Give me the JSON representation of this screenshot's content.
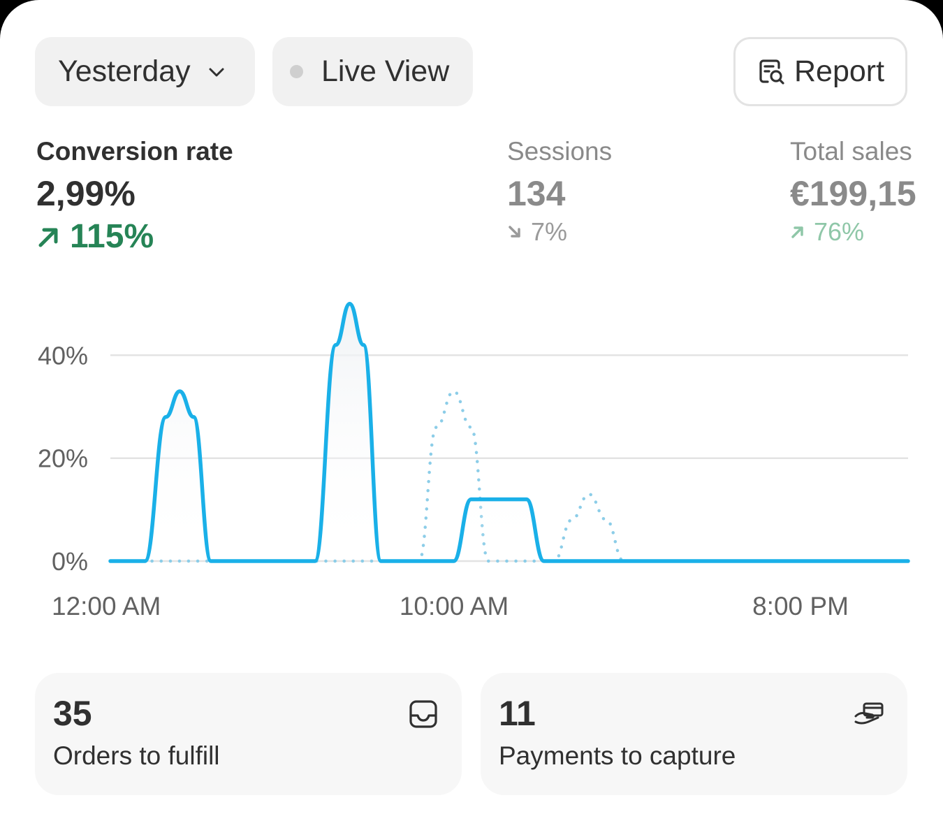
{
  "header": {
    "period_label": "Yesterday",
    "live_label": "Live View",
    "report_label": "Report"
  },
  "metrics": {
    "conversion": {
      "label": "Conversion rate",
      "value": "2,99%",
      "change": "115%",
      "direction": "up"
    },
    "sessions": {
      "label": "Sessions",
      "value": "134",
      "change": "7%",
      "direction": "down"
    },
    "sales": {
      "label": "Total sales",
      "value": "€199,15",
      "change": "76%",
      "direction": "up"
    }
  },
  "chart_data": {
    "type": "line",
    "ylabels": [
      "0%",
      "20%",
      "40%"
    ],
    "yticks": [
      0,
      20,
      40
    ],
    "ylim": [
      0,
      52
    ],
    "xlabels": [
      "12:00 AM",
      "10:00 AM",
      "8:00 PM"
    ],
    "xticks": [
      0,
      10,
      20
    ],
    "xlim": [
      0,
      23
    ],
    "grid": true,
    "colors": {
      "primary": "#1ab0e8",
      "comparison": "#8ccde8",
      "grid": "#e3e3e3"
    },
    "series": [
      {
        "style": "solid",
        "points": [
          [
            0,
            0
          ],
          [
            1,
            0
          ],
          [
            1.6,
            28
          ],
          [
            2,
            33
          ],
          [
            2.4,
            28
          ],
          [
            2.9,
            0
          ],
          [
            5.9,
            0
          ],
          [
            6.5,
            42
          ],
          [
            6.9,
            50
          ],
          [
            7.3,
            42
          ],
          [
            7.8,
            0
          ],
          [
            9.9,
            0
          ],
          [
            10.4,
            12
          ],
          [
            11,
            12
          ],
          [
            12,
            12
          ],
          [
            12.5,
            0
          ],
          [
            23,
            0
          ]
        ]
      },
      {
        "style": "dotted",
        "points": [
          [
            1.2,
            0
          ],
          [
            2.8,
            0
          ],
          [
            8.9,
            0
          ],
          [
            9.4,
            26
          ],
          [
            9.9,
            33
          ],
          [
            10.4,
            26
          ],
          [
            10.9,
            0
          ],
          [
            12.8,
            0
          ],
          [
            13.3,
            8
          ],
          [
            13.8,
            13
          ],
          [
            14.3,
            8
          ],
          [
            14.8,
            0
          ]
        ]
      }
    ]
  },
  "tiles": [
    {
      "count": "35",
      "label": "Orders to fulfill"
    },
    {
      "count": "11",
      "label": "Payments to capture"
    }
  ]
}
